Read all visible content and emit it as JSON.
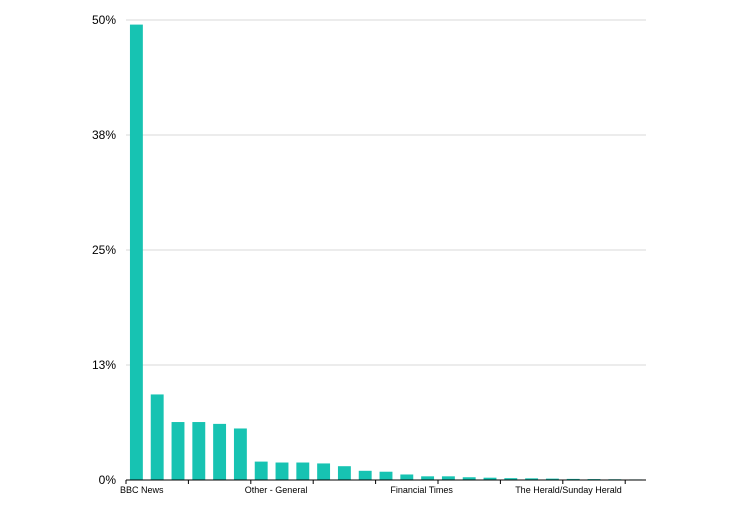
{
  "chart_data": {
    "type": "bar",
    "title": "",
    "xlabel": "",
    "ylabel": "",
    "ylim": [
      0,
      50
    ],
    "y_ticks": [
      0,
      12.5,
      25,
      37.5,
      50
    ],
    "y_tick_labels": [
      "0%",
      "13%",
      "25%",
      "38%",
      "50%"
    ],
    "grid": true,
    "labeled_categories": [
      {
        "index": 0,
        "label": "BBC News"
      },
      {
        "index": 6,
        "label": "Other - General"
      },
      {
        "index": 13,
        "label": "Financial Times"
      },
      {
        "index": 19,
        "label": "The Herald/Sunday Herald"
      }
    ],
    "values": [
      49.5,
      9.3,
      6.3,
      6.3,
      6.1,
      5.6,
      2.0,
      1.9,
      1.9,
      1.8,
      1.5,
      1.0,
      0.9,
      0.6,
      0.4,
      0.4,
      0.3,
      0.25,
      0.2,
      0.18,
      0.15,
      0.12,
      0.1,
      0.08,
      0.06
    ],
    "colors": {
      "bar": "#17c3b2",
      "grid": "#d9d9d9",
      "axis": "#000000"
    }
  }
}
